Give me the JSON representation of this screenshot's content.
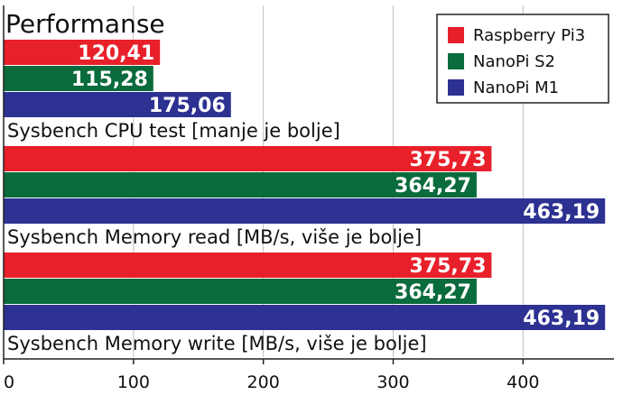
{
  "chart_data": {
    "type": "bar",
    "orientation": "horizontal",
    "title": "Performanse",
    "xlim": [
      0,
      470
    ],
    "xticks": [
      0,
      100,
      200,
      300,
      400
    ],
    "grid": true,
    "legend_position": "top-right",
    "series": [
      {
        "name": "Raspberry Pi3",
        "color": "#e8202a"
      },
      {
        "name": "NanoPi S2",
        "color": "#0a6b3c"
      },
      {
        "name": "NanoPi M1",
        "color": "#2d3192"
      }
    ],
    "groups": [
      {
        "label": "Sysbench CPU test [manje je bolje]",
        "values": [
          120.41,
          115.28,
          175.06
        ],
        "value_labels": [
          "120,41",
          "115,28",
          "175,06"
        ]
      },
      {
        "label": "Sysbench Memory read [MB/s, više je bolje]",
        "values": [
          375.73,
          364.27,
          463.19
        ],
        "value_labels": [
          "375,73",
          "364,27",
          "463,19"
        ]
      },
      {
        "label": "Sysbench Memory write [MB/s, više je bolje]",
        "values": [
          375.73,
          364.27,
          463.19
        ],
        "value_labels": [
          "375,73",
          "364,27",
          "463,19"
        ]
      }
    ]
  }
}
